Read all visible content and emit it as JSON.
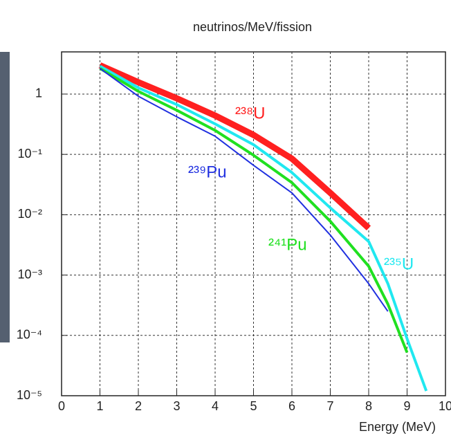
{
  "chart_data": {
    "type": "line",
    "title": "neutrinos/MeV/fission",
    "x_label": "Energy (MeV)",
    "log_y": true,
    "grid": true,
    "xlim": [
      0,
      10
    ],
    "xticks": [
      0,
      1,
      2,
      3,
      4,
      5,
      6,
      7,
      8,
      9,
      10
    ],
    "ylim": [
      1e-05,
      5
    ],
    "yticks": [
      {
        "value": 1,
        "label": "1"
      },
      {
        "value": 0.1,
        "label": "10⁻¹"
      },
      {
        "value": 0.01,
        "label": "10⁻²"
      },
      {
        "value": 0.001,
        "label": "10⁻³"
      },
      {
        "value": 0.0001,
        "label": "10⁻⁴"
      },
      {
        "value": 1e-05,
        "label": "10⁻⁵"
      }
    ],
    "series": [
      {
        "name": "²³⁸U",
        "color": "#ff2020",
        "x": [
          1,
          2,
          3,
          4,
          5,
          6,
          7,
          8
        ],
        "values": [
          3.0,
          1.57,
          0.85,
          0.44,
          0.21,
          0.085,
          0.023,
          0.006
        ]
      },
      {
        "name": "²³⁵U",
        "color": "#20e8f0",
        "x": [
          1,
          2,
          3,
          4,
          5,
          6,
          7,
          8,
          8.5,
          9,
          9.5
        ],
        "values": [
          2.9,
          1.27,
          0.67,
          0.32,
          0.145,
          0.05,
          0.013,
          0.0036,
          0.00072,
          8.8e-05,
          1.2e-05
        ]
      },
      {
        "name": "²⁴¹Pu",
        "color": "#20e020",
        "x": [
          1,
          2,
          3,
          4,
          5,
          6,
          7,
          8,
          8.5,
          9
        ],
        "values": [
          2.66,
          1.11,
          0.54,
          0.25,
          0.097,
          0.034,
          0.0078,
          0.0014,
          0.00033,
          5.2e-05
        ]
      },
      {
        "name": "²³⁹Pu",
        "color": "#2030e0",
        "x": [
          1,
          2,
          3,
          4,
          5,
          6,
          7,
          8,
          8.5
        ],
        "values": [
          2.66,
          0.92,
          0.42,
          0.2,
          0.066,
          0.023,
          0.0046,
          0.00072,
          0.00025
        ]
      }
    ]
  }
}
